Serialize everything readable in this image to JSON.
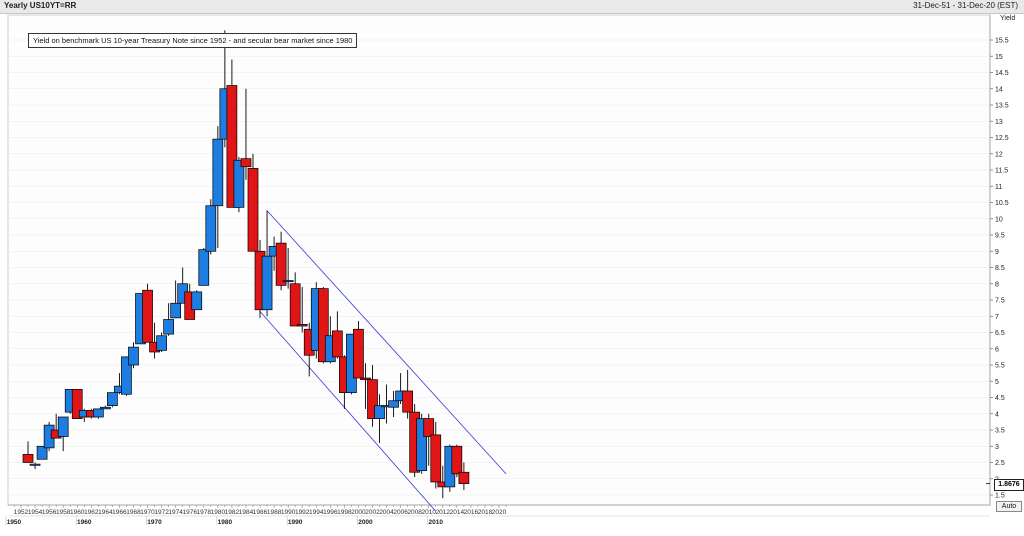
{
  "header": {
    "title": "Yearly US10YT=RR",
    "date_range": "31-Dec-51 - 31-Dec-20 (EST)"
  },
  "annotation": "Yield on benchmark US 10-year Treasury Note since 1952 - and secular bear market since 1980",
  "y_axis_title": "Yield",
  "last_value_label": "1.8676",
  "auto_button_label": "Auto",
  "colors": {
    "up": "#1e7de0",
    "down": "#e01616",
    "channel": "#3a3ad8",
    "grid": "#ececec"
  },
  "chart_data": {
    "type": "candlestick",
    "x_range": [
      1951,
      2021
    ],
    "ylim": [
      1.0,
      16.0
    ],
    "x_ticks": [
      1952,
      1954,
      1956,
      1958,
      1960,
      1962,
      1964,
      1966,
      1968,
      1970,
      1972,
      1974,
      1976,
      1978,
      1980,
      1982,
      1984,
      1986,
      1988,
      1990,
      1992,
      1994,
      1996,
      1998,
      2000,
      2002,
      2004,
      2006,
      2008,
      2010,
      2012,
      2014,
      2016,
      2018,
      2020
    ],
    "decades": [
      1950,
      1960,
      1970,
      1980,
      1990,
      2000,
      2010
    ],
    "y_ticks": [
      1.5,
      2,
      2.5,
      3,
      3.5,
      4,
      4.5,
      5,
      5.5,
      6,
      6.5,
      7,
      7.5,
      8,
      8.5,
      9,
      9.5,
      10,
      10.5,
      11,
      11.5,
      12,
      12.5,
      13,
      13.5,
      14,
      14.5,
      15,
      15.5
    ],
    "candles": [
      {
        "year": 1953,
        "open": 2.75,
        "high": 3.15,
        "low": 2.5,
        "close": 2.5
      },
      {
        "year": 1954,
        "open": 2.45,
        "high": 2.5,
        "low": 2.3,
        "close": 2.45
      },
      {
        "year": 1955,
        "open": 2.6,
        "high": 3.0,
        "low": 2.6,
        "close": 3.0
      },
      {
        "year": 1956,
        "open": 2.95,
        "high": 3.75,
        "low": 2.85,
        "close": 3.65
      },
      {
        "year": 1957,
        "open": 3.5,
        "high": 4.0,
        "low": 3.3,
        "close": 3.25
      },
      {
        "year": 1958,
        "open": 3.3,
        "high": 3.9,
        "low": 2.85,
        "close": 3.9
      },
      {
        "year": 1959,
        "open": 4.05,
        "high": 4.75,
        "low": 4.0,
        "close": 4.75
      },
      {
        "year": 1960,
        "open": 4.75,
        "high": 4.75,
        "low": 3.85,
        "close": 3.85
      },
      {
        "year": 1961,
        "open": 3.9,
        "high": 4.15,
        "low": 3.75,
        "close": 4.1
      },
      {
        "year": 1962,
        "open": 4.1,
        "high": 4.15,
        "low": 3.85,
        "close": 3.9
      },
      {
        "year": 1963,
        "open": 3.9,
        "high": 4.15,
        "low": 3.85,
        "close": 4.15
      },
      {
        "year": 1964,
        "open": 4.15,
        "high": 4.25,
        "low": 4.15,
        "close": 4.2
      },
      {
        "year": 1965,
        "open": 4.25,
        "high": 4.65,
        "low": 4.2,
        "close": 4.65
      },
      {
        "year": 1966,
        "open": 4.65,
        "high": 5.25,
        "low": 4.6,
        "close": 4.85
      },
      {
        "year": 1967,
        "open": 4.6,
        "high": 5.75,
        "low": 4.55,
        "close": 5.75
      },
      {
        "year": 1968,
        "open": 5.5,
        "high": 6.2,
        "low": 5.4,
        "close": 6.05
      },
      {
        "year": 1969,
        "open": 6.15,
        "high": 7.7,
        "low": 6.15,
        "close": 7.7
      },
      {
        "year": 1970,
        "open": 7.8,
        "high": 8.0,
        "low": 6.2,
        "close": 6.2
      },
      {
        "year": 1971,
        "open": 6.2,
        "high": 6.8,
        "low": 5.7,
        "close": 5.9
      },
      {
        "year": 1972,
        "open": 5.95,
        "high": 6.5,
        "low": 5.9,
        "close": 6.4
      },
      {
        "year": 1973,
        "open": 6.45,
        "high": 7.4,
        "low": 6.4,
        "close": 6.9
      },
      {
        "year": 1974,
        "open": 6.95,
        "high": 8.1,
        "low": 6.95,
        "close": 7.4
      },
      {
        "year": 1975,
        "open": 7.4,
        "high": 8.5,
        "low": 7.4,
        "close": 8.0
      },
      {
        "year": 1976,
        "open": 7.75,
        "high": 8.0,
        "low": 6.9,
        "close": 6.9
      },
      {
        "year": 1977,
        "open": 7.2,
        "high": 7.8,
        "low": 7.2,
        "close": 7.75
      },
      {
        "year": 1978,
        "open": 7.95,
        "high": 9.1,
        "low": 7.95,
        "close": 9.05
      },
      {
        "year": 1979,
        "open": 9.0,
        "high": 10.6,
        "low": 8.9,
        "close": 10.4
      },
      {
        "year": 1980,
        "open": 10.4,
        "high": 12.85,
        "low": 9.1,
        "close": 12.45
      },
      {
        "year": 1981,
        "open": 12.45,
        "high": 15.8,
        "low": 12.2,
        "close": 14.0
      },
      {
        "year": 1982,
        "open": 14.1,
        "high": 14.9,
        "low": 10.35,
        "close": 10.35
      },
      {
        "year": 1983,
        "open": 10.35,
        "high": 11.9,
        "low": 10.2,
        "close": 11.8
      },
      {
        "year": 1984,
        "open": 11.85,
        "high": 14.0,
        "low": 11.2,
        "close": 11.6
      },
      {
        "year": 1985,
        "open": 11.55,
        "high": 12.0,
        "low": 9.0,
        "close": 9.0
      },
      {
        "year": 1986,
        "open": 9.0,
        "high": 9.35,
        "low": 6.95,
        "close": 7.2
      },
      {
        "year": 1987,
        "open": 7.2,
        "high": 10.25,
        "low": 7.0,
        "close": 8.85
      },
      {
        "year": 1988,
        "open": 8.85,
        "high": 9.45,
        "low": 8.4,
        "close": 9.15
      },
      {
        "year": 1989,
        "open": 9.25,
        "high": 9.6,
        "low": 7.8,
        "close": 7.95
      },
      {
        "year": 1990,
        "open": 8.1,
        "high": 9.1,
        "low": 7.85,
        "close": 8.1
      },
      {
        "year": 1991,
        "open": 8.0,
        "high": 8.35,
        "low": 6.7,
        "close": 6.7
      },
      {
        "year": 1992,
        "open": 6.75,
        "high": 7.9,
        "low": 6.5,
        "close": 6.7
      },
      {
        "year": 1993,
        "open": 6.6,
        "high": 6.8,
        "low": 5.15,
        "close": 5.8
      },
      {
        "year": 1994,
        "open": 5.95,
        "high": 8.05,
        "low": 5.7,
        "close": 7.85
      },
      {
        "year": 1995,
        "open": 7.85,
        "high": 7.9,
        "low": 5.55,
        "close": 5.6
      },
      {
        "year": 1996,
        "open": 5.6,
        "high": 7.0,
        "low": 5.55,
        "close": 6.4
      },
      {
        "year": 1997,
        "open": 6.55,
        "high": 7.15,
        "low": 5.7,
        "close": 5.75
      },
      {
        "year": 1998,
        "open": 5.75,
        "high": 5.8,
        "low": 4.15,
        "close": 4.65
      },
      {
        "year": 1999,
        "open": 4.65,
        "high": 6.45,
        "low": 4.6,
        "close": 6.45
      },
      {
        "year": 2000,
        "open": 6.6,
        "high": 6.85,
        "low": 5.1,
        "close": 5.1
      },
      {
        "year": 2001,
        "open": 5.1,
        "high": 5.55,
        "low": 4.15,
        "close": 5.05
      },
      {
        "year": 2002,
        "open": 5.05,
        "high": 5.5,
        "low": 3.6,
        "close": 3.85
      },
      {
        "year": 2003,
        "open": 3.85,
        "high": 4.6,
        "low": 3.1,
        "close": 4.25
      },
      {
        "year": 2004,
        "open": 4.25,
        "high": 4.9,
        "low": 3.7,
        "close": 4.25
      },
      {
        "year": 2005,
        "open": 4.2,
        "high": 4.7,
        "low": 3.9,
        "close": 4.4
      },
      {
        "year": 2006,
        "open": 4.4,
        "high": 5.25,
        "low": 4.3,
        "close": 4.7
      },
      {
        "year": 2007,
        "open": 4.7,
        "high": 5.35,
        "low": 3.85,
        "close": 4.05
      },
      {
        "year": 2008,
        "open": 4.05,
        "high": 4.3,
        "low": 2.05,
        "close": 2.2
      },
      {
        "year": 2009,
        "open": 2.25,
        "high": 4.0,
        "low": 2.15,
        "close": 3.85
      },
      {
        "year": 2010,
        "open": 3.85,
        "high": 4.0,
        "low": 2.4,
        "close": 3.3
      },
      {
        "year": 2011,
        "open": 3.35,
        "high": 3.75,
        "low": 1.7,
        "close": 1.9
      },
      {
        "year": 2012,
        "open": 1.9,
        "high": 2.4,
        "low": 1.4,
        "close": 1.75
      },
      {
        "year": 2013,
        "open": 1.75,
        "high": 3.05,
        "low": 1.6,
        "close": 3.0
      },
      {
        "year": 2014,
        "open": 3.0,
        "high": 3.05,
        "low": 2.05,
        "close": 2.15
      },
      {
        "year": 2015,
        "open": 2.2,
        "high": 2.5,
        "low": 1.65,
        "close": 1.85
      }
    ],
    "channel_lines": [
      {
        "name": "upper",
        "x": [
          1987.0,
          2021.0
        ],
        "y": [
          10.25,
          2.15
        ]
      },
      {
        "name": "lower",
        "x": [
          1986.0,
          2011.0
        ],
        "y": [
          7.15,
          1.0
        ]
      }
    ]
  }
}
